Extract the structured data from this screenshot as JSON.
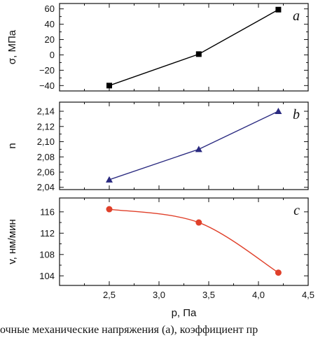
{
  "chart_data": [
    {
      "type": "line",
      "panel_letter": "a",
      "x": [
        2.5,
        3.4,
        4.2
      ],
      "series": [
        {
          "values": [
            -40,
            1,
            59
          ],
          "color": "#000000",
          "marker": "square"
        }
      ],
      "ylabel": "σ, МПа",
      "yticks": [
        60,
        40,
        20,
        0,
        -20,
        -40
      ],
      "ytick_labels": [
        "60",
        "40",
        "20",
        "0",
        "−20",
        "−40"
      ],
      "ylim": [
        -47,
        67
      ],
      "xlim": [
        2.0,
        4.5
      ],
      "grid": false
    },
    {
      "type": "line",
      "panel_letter": "b",
      "x": [
        2.5,
        3.4,
        4.2
      ],
      "series": [
        {
          "values": [
            2.05,
            2.09,
            2.14
          ],
          "color": "#2a2a80",
          "marker": "triangle"
        }
      ],
      "ylabel": "n",
      "yticks": [
        2.14,
        2.12,
        2.1,
        2.08,
        2.06,
        2.04
      ],
      "ytick_labels": [
        "2,14",
        "2,12",
        "2,10",
        "2,08",
        "2,06",
        "2,04"
      ],
      "ylim": [
        2.037,
        2.152
      ],
      "xlim": [
        2.0,
        4.5
      ],
      "grid": false
    },
    {
      "type": "line",
      "panel_letter": "c",
      "x": [
        2.5,
        3.4,
        4.2
      ],
      "series": [
        {
          "values": [
            116.5,
            114.0,
            104.6
          ],
          "color": "#e0402a",
          "marker": "circle"
        }
      ],
      "ylabel": "v, нм/мин",
      "yticks": [
        116,
        112,
        108,
        104
      ],
      "ytick_labels": [
        "116",
        "112",
        "108",
        "104"
      ],
      "ylim": [
        102.2,
        118.6
      ],
      "xlim": [
        2.0,
        4.5
      ],
      "xticks": [
        2.5,
        3.0,
        3.5,
        4.0,
        4.5
      ],
      "xtick_labels": [
        "2,5",
        "3,0",
        "3,5",
        "4,0",
        "4,5"
      ],
      "xlabel": "p, Па",
      "grid": false
    }
  ],
  "caption": "очные механические напряжения (a), коэффициент пр"
}
